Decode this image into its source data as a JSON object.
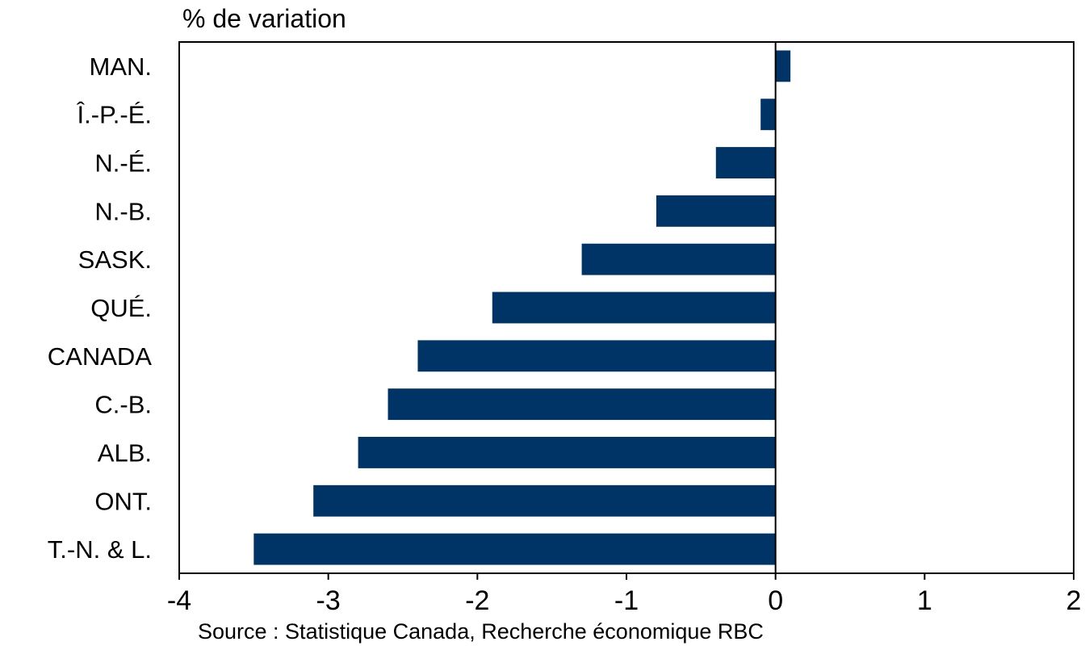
{
  "chart_data": {
    "type": "bar",
    "orientation": "horizontal",
    "ylabel": "% de variation",
    "categories": [
      "MAN.",
      "Î.-P.-É.",
      "N.-É.",
      "N.-B.",
      "SASK.",
      "QUÉ.",
      "CANADA",
      "C.-B.",
      "ALB.",
      "ONT.",
      "T.-N. & L."
    ],
    "values": [
      0.1,
      -0.1,
      -0.4,
      -0.8,
      -1.3,
      -1.9,
      -2.4,
      -2.6,
      -2.8,
      -3.1,
      -3.5
    ],
    "xlim": [
      -4,
      2
    ],
    "xticks": [
      -4,
      -3,
      -2,
      -1,
      0,
      1,
      2
    ],
    "xtick_labels": [
      "-4",
      "-3",
      "-2",
      "-1",
      "0",
      "1",
      "2"
    ],
    "bar_color": "#003366",
    "grid": false,
    "source": "Source : Statistique Canada, Recherche économique RBC"
  }
}
